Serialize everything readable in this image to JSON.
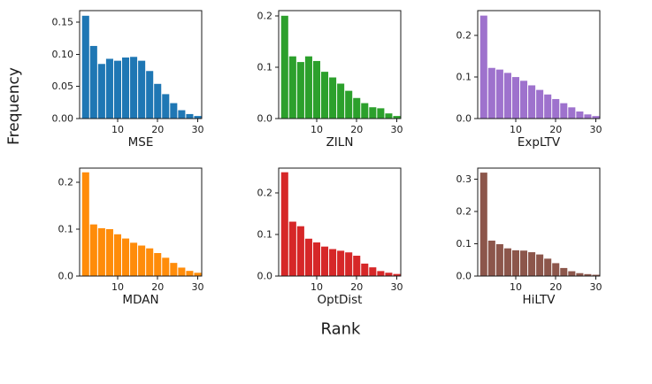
{
  "figure": {
    "ylabel": "Frequency",
    "xlabel": "Rank"
  },
  "chart_data": [
    {
      "type": "bar",
      "title": "MSE",
      "color": "#1f77b4",
      "bin_start": 1,
      "bin_width": 2,
      "xlim": [
        0.5,
        31
      ],
      "xticks": [
        10,
        20,
        30
      ],
      "ylim": [
        0,
        0.168
      ],
      "ytick_values": [
        0,
        0.05,
        0.1,
        0.15
      ],
      "ytick_labels": [
        "0.00",
        "0.05",
        "0.10",
        "0.15"
      ],
      "values": [
        0.16,
        0.113,
        0.085,
        0.093,
        0.09,
        0.095,
        0.096,
        0.09,
        0.074,
        0.054,
        0.038,
        0.024,
        0.013,
        0.007,
        0.004
      ]
    },
    {
      "type": "bar",
      "title": "ZILN",
      "color": "#2ca02c",
      "bin_start": 1,
      "bin_width": 2,
      "xlim": [
        0.5,
        31
      ],
      "xticks": [
        10,
        20,
        30
      ],
      "ylim": [
        0,
        0.21
      ],
      "ytick_values": [
        0,
        0.1,
        0.2
      ],
      "ytick_labels": [
        "0.0",
        "0.1",
        "0.2"
      ],
      "values": [
        0.2,
        0.121,
        0.11,
        0.121,
        0.112,
        0.091,
        0.08,
        0.068,
        0.054,
        0.04,
        0.03,
        0.022,
        0.02,
        0.01,
        0.005
      ]
    },
    {
      "type": "bar",
      "title": "ExpLTV",
      "color": "#9e72cd",
      "bin_start": 1,
      "bin_width": 2,
      "xlim": [
        0.5,
        31
      ],
      "xticks": [
        10,
        20,
        30
      ],
      "ylim": [
        0,
        0.26
      ],
      "ytick_values": [
        0,
        0.1,
        0.2
      ],
      "ytick_labels": [
        "0.0",
        "0.1",
        "0.2"
      ],
      "values": [
        0.248,
        0.122,
        0.118,
        0.11,
        0.1,
        0.091,
        0.08,
        0.069,
        0.058,
        0.047,
        0.037,
        0.027,
        0.017,
        0.01,
        0.006
      ]
    },
    {
      "type": "bar",
      "title": "MDAN",
      "color": "#ff8c0a",
      "bin_start": 1,
      "bin_width": 2,
      "xlim": [
        0.5,
        31
      ],
      "xticks": [
        10,
        20,
        30
      ],
      "ylim": [
        0,
        0.23
      ],
      "ytick_values": [
        0,
        0.1,
        0.2
      ],
      "ytick_labels": [
        "0.0",
        "0.1",
        "0.2"
      ],
      "values": [
        0.221,
        0.11,
        0.102,
        0.1,
        0.089,
        0.08,
        0.071,
        0.065,
        0.059,
        0.049,
        0.039,
        0.028,
        0.018,
        0.011,
        0.007
      ]
    },
    {
      "type": "bar",
      "title": "OptDist",
      "color": "#d62728",
      "bin_start": 1,
      "bin_width": 2,
      "xlim": [
        0.5,
        31
      ],
      "xticks": [
        10,
        20,
        30
      ],
      "ylim": [
        0,
        0.26
      ],
      "ytick_values": [
        0,
        0.1,
        0.2
      ],
      "ytick_labels": [
        "0.0",
        "0.1",
        "0.2"
      ],
      "values": [
        0.25,
        0.131,
        0.12,
        0.09,
        0.081,
        0.071,
        0.065,
        0.061,
        0.057,
        0.049,
        0.03,
        0.021,
        0.012,
        0.008,
        0.005
      ]
    },
    {
      "type": "bar",
      "title": "HiLTV",
      "color": "#8c564b",
      "bin_start": 1,
      "bin_width": 2,
      "xlim": [
        0.5,
        31
      ],
      "xticks": [
        10,
        20,
        30
      ],
      "ylim": [
        0,
        0.335
      ],
      "ytick_values": [
        0,
        0.1,
        0.2,
        0.3
      ],
      "ytick_labels": [
        "0.0",
        "0.1",
        "0.2",
        "0.3"
      ],
      "values": [
        0.321,
        0.11,
        0.099,
        0.086,
        0.08,
        0.079,
        0.074,
        0.067,
        0.054,
        0.04,
        0.025,
        0.015,
        0.009,
        0.006,
        0.004
      ]
    }
  ]
}
